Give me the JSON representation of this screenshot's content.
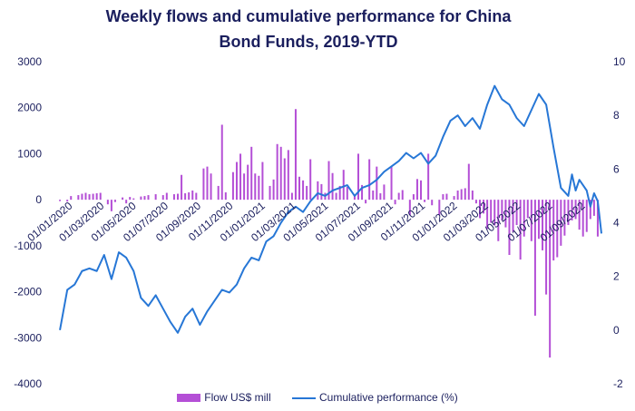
{
  "chart_data": {
    "type": "bar+line",
    "title_lines": [
      "Weekly flows and cumulative performance for China",
      "Bond Funds, 2019-YTD"
    ],
    "legend": {
      "placement": "bottom",
      "colors": {
        "bars": "#b44fd6",
        "line": "#2777d6"
      }
    },
    "grid": false,
    "y_left": {
      "ylim": [
        -4000,
        3000
      ],
      "ticks": [
        "3000",
        "2000",
        "1000",
        "0",
        "-1000",
        "-2000",
        "-3000",
        "-4000"
      ],
      "tick_values": [
        3000,
        2000,
        1000,
        0,
        -1000,
        -2000,
        -3000,
        -4000
      ]
    },
    "y_right": {
      "ylim": [
        -2,
        10
      ],
      "ticks": [
        "10",
        "8",
        "6",
        "4",
        "2",
        "0",
        "-2"
      ],
      "tick_values": [
        10,
        8,
        6,
        4,
        2,
        0,
        -2
      ]
    },
    "x_ticks": [
      "01/01/2020",
      "01/03/2020",
      "01/05/2020",
      "01/07/2020",
      "01/09/2020",
      "01/11/2020",
      "01/01/2021",
      "01/03/2021",
      "01/05/2021",
      "01/07/2021",
      "01/09/2021",
      "01/11/2021",
      "01/01/2022",
      "01/03/2022",
      "01/05/2022",
      "01/07/2022",
      "01/09/2022"
    ],
    "x_range": [
      "2019-11-30",
      "2022-10-01"
    ],
    "series": [
      {
        "name": "Flow US$ mill",
        "type": "bar",
        "axis": "left",
        "color": "#b44fd6",
        "points": [
          [
            "2019-12-07",
            -30
          ],
          [
            "2019-12-21",
            -40
          ],
          [
            "2019-12-28",
            80
          ],
          [
            "2020-01-11",
            100
          ],
          [
            "2020-01-18",
            130
          ],
          [
            "2020-01-25",
            150
          ],
          [
            "2020-02-01",
            120
          ],
          [
            "2020-02-08",
            130
          ],
          [
            "2020-02-15",
            140
          ],
          [
            "2020-02-22",
            150
          ],
          [
            "2020-03-07",
            -100
          ],
          [
            "2020-03-14",
            -250
          ],
          [
            "2020-03-21",
            -50
          ],
          [
            "2020-04-04",
            50
          ],
          [
            "2020-04-11",
            -80
          ],
          [
            "2020-04-18",
            60
          ],
          [
            "2020-04-25",
            30
          ],
          [
            "2020-05-09",
            70
          ],
          [
            "2020-05-16",
            80
          ],
          [
            "2020-05-23",
            100
          ],
          [
            "2020-06-06",
            120
          ],
          [
            "2020-06-20",
            100
          ],
          [
            "2020-06-27",
            150
          ],
          [
            "2020-07-11",
            120
          ],
          [
            "2020-07-18",
            130
          ],
          [
            "2020-07-25",
            540
          ],
          [
            "2020-08-01",
            140
          ],
          [
            "2020-08-08",
            160
          ],
          [
            "2020-08-15",
            200
          ],
          [
            "2020-08-22",
            150
          ],
          [
            "2020-09-05",
            680
          ],
          [
            "2020-09-12",
            720
          ],
          [
            "2020-09-19",
            570
          ],
          [
            "2020-10-03",
            300
          ],
          [
            "2020-10-10",
            1630
          ],
          [
            "2020-10-17",
            160
          ],
          [
            "2020-10-31",
            600
          ],
          [
            "2020-11-07",
            820
          ],
          [
            "2020-11-14",
            1000
          ],
          [
            "2020-11-21",
            570
          ],
          [
            "2020-11-28",
            760
          ],
          [
            "2020-12-05",
            1150
          ],
          [
            "2020-12-12",
            570
          ],
          [
            "2020-12-19",
            520
          ],
          [
            "2020-12-26",
            820
          ],
          [
            "2021-01-09",
            300
          ],
          [
            "2021-01-16",
            440
          ],
          [
            "2021-01-23",
            1210
          ],
          [
            "2021-01-30",
            1150
          ],
          [
            "2021-02-06",
            900
          ],
          [
            "2021-02-13",
            1080
          ],
          [
            "2021-02-20",
            150
          ],
          [
            "2021-02-27",
            1970
          ],
          [
            "2021-03-06",
            500
          ],
          [
            "2021-03-13",
            420
          ],
          [
            "2021-03-20",
            300
          ],
          [
            "2021-03-27",
            880
          ],
          [
            "2021-04-10",
            400
          ],
          [
            "2021-04-17",
            340
          ],
          [
            "2021-04-24",
            150
          ],
          [
            "2021-05-01",
            840
          ],
          [
            "2021-05-08",
            580
          ],
          [
            "2021-05-15",
            150
          ],
          [
            "2021-05-22",
            300
          ],
          [
            "2021-05-29",
            650
          ],
          [
            "2021-06-05",
            280
          ],
          [
            "2021-06-19",
            100
          ],
          [
            "2021-06-26",
            1000
          ],
          [
            "2021-07-03",
            320
          ],
          [
            "2021-07-10",
            -80
          ],
          [
            "2021-07-17",
            880
          ],
          [
            "2021-07-24",
            200
          ],
          [
            "2021-07-31",
            720
          ],
          [
            "2021-08-07",
            140
          ],
          [
            "2021-08-14",
            330
          ],
          [
            "2021-08-28",
            720
          ],
          [
            "2021-09-04",
            -100
          ],
          [
            "2021-09-11",
            150
          ],
          [
            "2021-09-18",
            210
          ],
          [
            "2021-10-02",
            -330
          ],
          [
            "2021-10-09",
            120
          ],
          [
            "2021-10-16",
            450
          ],
          [
            "2021-10-23",
            420
          ],
          [
            "2021-10-30",
            -50
          ],
          [
            "2021-11-06",
            1000
          ],
          [
            "2021-11-13",
            -120
          ],
          [
            "2021-11-27",
            -330
          ],
          [
            "2021-12-04",
            120
          ],
          [
            "2021-12-11",
            130
          ],
          [
            "2021-12-25",
            80
          ],
          [
            "2022-01-01",
            200
          ],
          [
            "2022-01-08",
            230
          ],
          [
            "2022-01-15",
            250
          ],
          [
            "2022-01-22",
            780
          ],
          [
            "2022-01-29",
            200
          ],
          [
            "2022-02-05",
            -80
          ],
          [
            "2022-02-12",
            -400
          ],
          [
            "2022-02-19",
            -300
          ],
          [
            "2022-02-26",
            -640
          ],
          [
            "2022-03-05",
            -500
          ],
          [
            "2022-03-12",
            -560
          ],
          [
            "2022-03-19",
            -900
          ],
          [
            "2022-03-26",
            -450
          ],
          [
            "2022-04-02",
            -600
          ],
          [
            "2022-04-09",
            -1200
          ],
          [
            "2022-04-16",
            -700
          ],
          [
            "2022-04-23",
            -550
          ],
          [
            "2022-04-30",
            -1300
          ],
          [
            "2022-05-07",
            -800
          ],
          [
            "2022-05-14",
            -400
          ],
          [
            "2022-05-21",
            -900
          ],
          [
            "2022-05-28",
            -2520
          ],
          [
            "2022-06-04",
            -850
          ],
          [
            "2022-06-11",
            -1100
          ],
          [
            "2022-06-18",
            -2060
          ],
          [
            "2022-06-25",
            -3430
          ],
          [
            "2022-07-02",
            -1320
          ],
          [
            "2022-07-09",
            -1250
          ],
          [
            "2022-07-16",
            -1000
          ],
          [
            "2022-07-23",
            -780
          ],
          [
            "2022-07-30",
            -550
          ],
          [
            "2022-08-06",
            -450
          ],
          [
            "2022-08-13",
            -420
          ],
          [
            "2022-08-20",
            -650
          ],
          [
            "2022-08-27",
            -800
          ],
          [
            "2022-09-03",
            -700
          ],
          [
            "2022-09-10",
            -420
          ],
          [
            "2022-09-17",
            -350
          ],
          [
            "2022-09-24",
            -800
          ]
        ]
      },
      {
        "name": "Cumulative performance (%)",
        "type": "line",
        "axis": "right",
        "color": "#2777d6",
        "points": [
          [
            "2019-12-07",
            0.0
          ],
          [
            "2019-12-21",
            1.5
          ],
          [
            "2020-01-04",
            1.7
          ],
          [
            "2020-01-18",
            2.2
          ],
          [
            "2020-02-01",
            2.3
          ],
          [
            "2020-02-15",
            2.2
          ],
          [
            "2020-02-29",
            2.8
          ],
          [
            "2020-03-14",
            1.9
          ],
          [
            "2020-03-28",
            2.9
          ],
          [
            "2020-04-11",
            2.7
          ],
          [
            "2020-04-25",
            2.2
          ],
          [
            "2020-05-09",
            1.2
          ],
          [
            "2020-05-23",
            0.9
          ],
          [
            "2020-06-06",
            1.3
          ],
          [
            "2020-06-20",
            0.8
          ],
          [
            "2020-07-04",
            0.3
          ],
          [
            "2020-07-18",
            -0.1
          ],
          [
            "2020-08-01",
            0.5
          ],
          [
            "2020-08-15",
            0.8
          ],
          [
            "2020-08-29",
            0.2
          ],
          [
            "2020-09-12",
            0.7
          ],
          [
            "2020-09-26",
            1.1
          ],
          [
            "2020-10-10",
            1.5
          ],
          [
            "2020-10-24",
            1.4
          ],
          [
            "2020-11-07",
            1.7
          ],
          [
            "2020-11-21",
            2.3
          ],
          [
            "2020-12-05",
            2.7
          ],
          [
            "2020-12-19",
            2.6
          ],
          [
            "2021-01-02",
            3.3
          ],
          [
            "2021-01-16",
            3.5
          ],
          [
            "2021-01-30",
            4.0
          ],
          [
            "2021-02-13",
            4.4
          ],
          [
            "2021-02-27",
            4.6
          ],
          [
            "2021-03-13",
            4.4
          ],
          [
            "2021-03-27",
            4.8
          ],
          [
            "2021-04-10",
            5.1
          ],
          [
            "2021-04-24",
            5.0
          ],
          [
            "2021-05-08",
            5.2
          ],
          [
            "2021-05-22",
            5.3
          ],
          [
            "2021-06-05",
            5.4
          ],
          [
            "2021-06-19",
            5.0
          ],
          [
            "2021-07-03",
            5.3
          ],
          [
            "2021-07-17",
            5.4
          ],
          [
            "2021-07-31",
            5.6
          ],
          [
            "2021-08-14",
            5.9
          ],
          [
            "2021-08-28",
            6.1
          ],
          [
            "2021-09-11",
            6.3
          ],
          [
            "2021-09-25",
            6.6
          ],
          [
            "2021-10-09",
            6.4
          ],
          [
            "2021-10-23",
            6.6
          ],
          [
            "2021-11-06",
            6.2
          ],
          [
            "2021-11-20",
            6.5
          ],
          [
            "2021-12-04",
            7.2
          ],
          [
            "2021-12-18",
            7.8
          ],
          [
            "2022-01-01",
            8.0
          ],
          [
            "2022-01-15",
            7.6
          ],
          [
            "2022-01-29",
            7.9
          ],
          [
            "2022-02-12",
            7.5
          ],
          [
            "2022-02-26",
            8.4
          ],
          [
            "2022-03-12",
            9.1
          ],
          [
            "2022-03-26",
            8.6
          ],
          [
            "2022-04-09",
            8.4
          ],
          [
            "2022-04-23",
            7.9
          ],
          [
            "2022-05-07",
            7.6
          ],
          [
            "2022-05-21",
            8.2
          ],
          [
            "2022-06-04",
            8.8
          ],
          [
            "2022-06-18",
            8.4
          ],
          [
            "2022-07-02",
            6.8
          ],
          [
            "2022-07-16",
            5.3
          ],
          [
            "2022-07-30",
            5.0
          ],
          [
            "2022-08-06",
            5.8
          ],
          [
            "2022-08-13",
            5.2
          ],
          [
            "2022-08-20",
            5.6
          ],
          [
            "2022-08-27",
            5.4
          ],
          [
            "2022-09-03",
            5.2
          ],
          [
            "2022-09-10",
            4.6
          ],
          [
            "2022-09-17",
            5.1
          ],
          [
            "2022-09-24",
            4.8
          ],
          [
            "2022-10-01",
            3.6
          ]
        ]
      }
    ]
  }
}
